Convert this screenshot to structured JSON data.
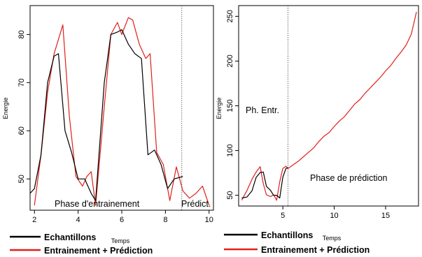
{
  "chart_data": [
    {
      "type": "line",
      "xlabel": "Temps",
      "ylabel": "Energie",
      "xlim": [
        1.8,
        10.2
      ],
      "ylim": [
        43.5,
        86
      ],
      "xticks": [
        2,
        4,
        6,
        8,
        10
      ],
      "yticks": [
        50,
        60,
        70,
        80
      ],
      "grid": false,
      "vline_x": 8.75,
      "annotations": [
        "Phase d'entrainement",
        "Prédict."
      ],
      "series": [
        {
          "name": "Echantillons",
          "color": "#000000",
          "x": [
            1.8,
            2.0,
            2.3,
            2.6,
            2.9,
            3.1,
            3.4,
            3.7,
            4.0,
            4.3,
            4.6,
            4.8,
            5.2,
            5.5,
            5.8,
            6.0,
            6.3,
            6.6,
            6.9,
            7.2,
            7.5,
            7.8,
            8.1,
            8.4,
            8.8
          ],
          "y": [
            47,
            48,
            55,
            70,
            75.5,
            76,
            60,
            55.5,
            50,
            50,
            47,
            45.5,
            70,
            80,
            80.5,
            81,
            78,
            76,
            75,
            55,
            56,
            53,
            48,
            50,
            50.5
          ]
        },
        {
          "name": "Entrainement + Prédiction",
          "color": "#e0201b",
          "x": [
            2.0,
            2.3,
            2.6,
            2.9,
            3.3,
            3.6,
            3.9,
            4.2,
            4.4,
            4.6,
            4.8,
            5.2,
            5.5,
            5.8,
            6.0,
            6.3,
            6.5,
            6.8,
            7.1,
            7.3,
            7.6,
            7.9,
            8.2,
            8.5,
            8.8,
            9.1,
            9.4,
            9.7,
            10.0
          ],
          "y": [
            44.5,
            55,
            68,
            76,
            82,
            63,
            50.5,
            48.5,
            50.5,
            51.5,
            44.5,
            65,
            80,
            82.5,
            80,
            83.5,
            83,
            78,
            75,
            76,
            55.5,
            53,
            45.5,
            52.5,
            47.5,
            46,
            47,
            48.5,
            44.5
          ]
        }
      ]
    },
    {
      "type": "line",
      "xlabel": "Temps",
      "ylabel": "Energie",
      "xlim": [
        0.7,
        18.2
      ],
      "ylim": [
        38,
        262
      ],
      "xticks": [
        5,
        10,
        15
      ],
      "yticks": [
        50,
        100,
        150,
        200,
        250
      ],
      "grid": false,
      "vline_x": 5.5,
      "annotations": [
        "Ph. Entr.",
        "Phase de prédiction"
      ],
      "series": [
        {
          "name": "Echantillons",
          "color": "#000000",
          "x": [
            1.0,
            1.5,
            2.0,
            2.4,
            2.8,
            3.1,
            3.4,
            3.8,
            4.1,
            4.4,
            4.7,
            5.0,
            5.3,
            5.5
          ],
          "y": [
            47,
            48,
            55,
            70,
            75.5,
            76,
            60,
            55.5,
            50,
            50,
            47,
            70,
            80,
            80.5
          ]
        },
        {
          "name": "Entrainement + Prédiction",
          "color": "#e0201b",
          "x": [
            1.0,
            1.5,
            2.0,
            2.4,
            2.8,
            3.1,
            3.4,
            3.8,
            4.1,
            4.4,
            4.7,
            5.0,
            5.3,
            5.5,
            6.0,
            6.5,
            7.0,
            7.5,
            8.0,
            8.5,
            9.0,
            9.5,
            10.0,
            10.5,
            11.0,
            11.5,
            12.0,
            12.5,
            13.0,
            13.5,
            14.0,
            14.5,
            15.0,
            15.5,
            16.0,
            16.5,
            17.0,
            17.5,
            18.0
          ],
          "y": [
            44.5,
            55,
            68,
            76,
            82,
            63,
            50.5,
            48.5,
            50.5,
            44.5,
            65,
            80,
            82.5,
            80,
            84,
            88,
            93,
            98,
            103,
            110,
            116,
            120,
            127,
            133,
            138,
            145,
            152,
            157,
            164,
            170,
            176,
            182,
            189,
            195,
            203,
            210,
            218,
            230,
            255
          ]
        }
      ]
    }
  ],
  "legend": {
    "left": [
      "Echantillons",
      "Entrainement + Prédiction"
    ],
    "right": [
      "Echantillons",
      "Entrainement + Prédiction"
    ]
  }
}
